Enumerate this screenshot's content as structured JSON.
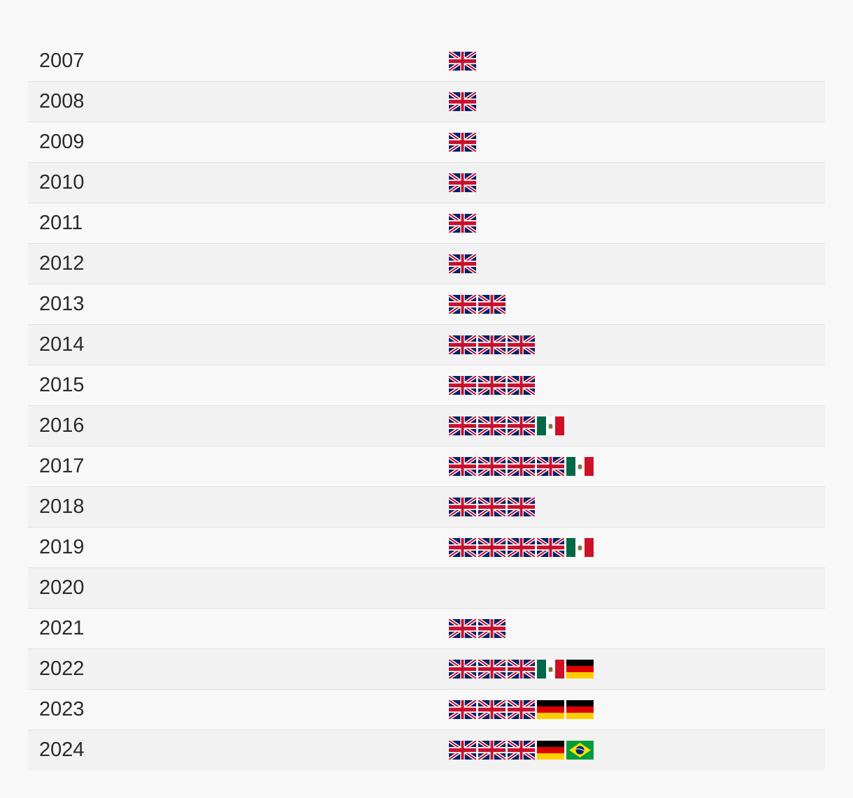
{
  "rows": [
    {
      "year": "2007",
      "flags": [
        "gb"
      ]
    },
    {
      "year": "2008",
      "flags": [
        "gb"
      ]
    },
    {
      "year": "2009",
      "flags": [
        "gb"
      ]
    },
    {
      "year": "2010",
      "flags": [
        "gb"
      ]
    },
    {
      "year": "2011",
      "flags": [
        "gb"
      ]
    },
    {
      "year": "2012",
      "flags": [
        "gb"
      ]
    },
    {
      "year": "2013",
      "flags": [
        "gb",
        "gb"
      ]
    },
    {
      "year": "2014",
      "flags": [
        "gb",
        "gb",
        "gb"
      ]
    },
    {
      "year": "2015",
      "flags": [
        "gb",
        "gb",
        "gb"
      ]
    },
    {
      "year": "2016",
      "flags": [
        "gb",
        "gb",
        "gb",
        "mx"
      ]
    },
    {
      "year": "2017",
      "flags": [
        "gb",
        "gb",
        "gb",
        "gb",
        "mx"
      ]
    },
    {
      "year": "2018",
      "flags": [
        "gb",
        "gb",
        "gb"
      ]
    },
    {
      "year": "2019",
      "flags": [
        "gb",
        "gb",
        "gb",
        "gb",
        "mx"
      ]
    },
    {
      "year": "2020",
      "flags": []
    },
    {
      "year": "2021",
      "flags": [
        "gb",
        "gb"
      ]
    },
    {
      "year": "2022",
      "flags": [
        "gb",
        "gb",
        "gb",
        "mx",
        "de"
      ]
    },
    {
      "year": "2023",
      "flags": [
        "gb",
        "gb",
        "gb",
        "de",
        "de"
      ]
    },
    {
      "year": "2024",
      "flags": [
        "gb",
        "gb",
        "gb",
        "de",
        "br"
      ]
    }
  ],
  "flag_icons": {
    "gb": "uk-flag-icon",
    "mx": "mexico-flag-icon",
    "de": "germany-flag-icon",
    "br": "brazil-flag-icon"
  },
  "colors": {
    "row_odd": "#f8f8f8",
    "row_even": "#f2f2f2",
    "divider": "#e2e2e2",
    "text": "#2b2b2b"
  }
}
